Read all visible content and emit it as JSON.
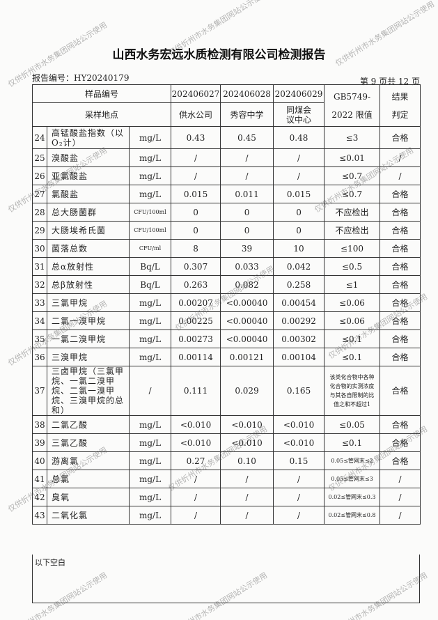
{
  "header": {
    "title": "山西水务宏远水质检测有限公司检测报告",
    "report_no": "报告编号：HY20240179",
    "page": "第 9 页共 12 页"
  },
  "table": {
    "h_sample_no": "样品编号",
    "h_site": "采样地点",
    "h_limit1": "GB5749-",
    "h_limit2": "2022 限值",
    "h_result1": "结果",
    "h_result2": "判定",
    "samples": [
      "202406027",
      "202406028",
      "202406029"
    ],
    "sites": [
      "供水公司",
      "秀容中学",
      "同煤会议中心"
    ],
    "rows": [
      [
        "24",
        "高锰酸盐指数（以O₂计）",
        "mg/L",
        "0.43",
        "0.45",
        "0.48",
        "≤3",
        "合格"
      ],
      [
        "25",
        "溴酸盐",
        "mg/L",
        "/",
        "/",
        "/",
        "≤0.01",
        "/"
      ],
      [
        "26",
        "亚氯酸盐",
        "mg/L",
        "/",
        "/",
        "/",
        "≤0.7",
        "/"
      ],
      [
        "27",
        "氯酸盐",
        "mg/L",
        "0.015",
        "0.011",
        "0.015",
        "≤0.7",
        "合格"
      ],
      [
        "28",
        "总大肠菌群",
        "CFU/100ml",
        "0",
        "0",
        "0",
        "不应检出",
        "合格"
      ],
      [
        "29",
        "大肠埃希氏菌",
        "CFU/100ml",
        "0",
        "0",
        "0",
        "不应检出",
        "合格"
      ],
      [
        "30",
        "菌落总数",
        "CFU/ml",
        "8",
        "39",
        "10",
        "≤100",
        "合格"
      ],
      [
        "31",
        "总α放射性",
        "Bq/L",
        "0.307",
        "0.033",
        "0.042",
        "≤0.5",
        "合格"
      ],
      [
        "32",
        "总β放射性",
        "Bq/L",
        "0.263",
        "0.082",
        "0.258",
        "≤1",
        "合格"
      ],
      [
        "33",
        "三氯甲烷",
        "mg/L",
        "0.00207",
        "<0.00040",
        "0.00454",
        "≤0.06",
        "合格"
      ],
      [
        "34",
        "二氯一溴甲烷",
        "mg/L",
        "0.00225",
        "<0.00040",
        "0.00292",
        "≤0.06",
        "合格"
      ],
      [
        "35",
        "一氯二溴甲烷",
        "mg/L",
        "0.00273",
        "<0.00040",
        "0.00302",
        "≤0.1",
        "合格"
      ],
      [
        "36",
        "三溴甲烷",
        "mg/L",
        "0.00114",
        "0.00121",
        "0.00104",
        "≤0.1",
        "合格"
      ],
      [
        "37",
        "三卤甲烷（三氯甲烷、一氯二溴甲烷、二氯一溴甲烷、三溴甲烷的总和）",
        "/",
        "0.111",
        "0.029",
        "0.165",
        "该类化合物中各种化合物的实测浓度与其各自限制的比值之和不超过1",
        "合格"
      ],
      [
        "38",
        "二氯乙酸",
        "mg/L",
        "<0.010",
        "<0.010",
        "<0.010",
        "≤0.05",
        "合格"
      ],
      [
        "39",
        "三氯乙酸",
        "mg/L",
        "<0.010",
        "<0.010",
        "<0.010",
        "≤0.1",
        "合格"
      ],
      [
        "40",
        "游离氯",
        "mg/L",
        "0.27",
        "0.10",
        "0.15",
        "0.05≤管网末≤2",
        "合格"
      ],
      [
        "41",
        "总氯",
        "mg/L",
        "/",
        "/",
        "/",
        "0.05≤管网末≤3",
        "/"
      ],
      [
        "42",
        "臭氧",
        "mg/L",
        "/",
        "/",
        "/",
        "0.02≤管网末≤0.3",
        "/"
      ],
      [
        "43",
        "二氧化氯",
        "mg/L",
        "/",
        "/",
        "/",
        "0.02≤管网末≤0.8",
        "/"
      ]
    ]
  },
  "footer": {
    "blank_note": "以下空白"
  },
  "watermark": "仅供忻州市水务集团网站公示使用"
}
